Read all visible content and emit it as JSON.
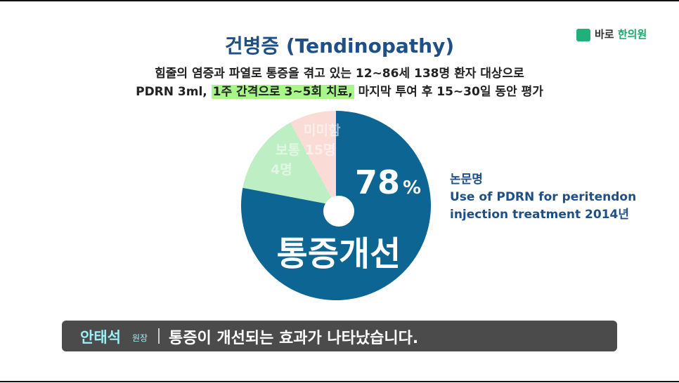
{
  "logo": {
    "brand": "바로",
    "name": "한의원"
  },
  "chart_data": {
    "type": "pie",
    "title": "건병증 (Tendinopathy)",
    "subtitle_line1": "힘줄의 염증과 파열로 통증을 겪고 있는 12~86세 138명 환자 대상으로",
    "subtitle_line2": [
      "PDRN 3ml,",
      "1주 간격으로 3~5회 치료,",
      "마지막 투여 후 15~30일 동안 평가"
    ],
    "categories": [
      "통증개선",
      "보통 15명",
      "미미함"
    ],
    "values": [
      78,
      14,
      8
    ],
    "value_labels": [
      "78"
    ],
    "unit": "%",
    "extra_label": "4명",
    "colors": [
      "#0d6594",
      "#bdeec4",
      "#fbdbd5"
    ]
  },
  "source": {
    "heading": "논문명",
    "lines": [
      "Use of PDRN for peritendon",
      "injection treatment 2014년"
    ]
  },
  "caption": {
    "speaker": "안태석",
    "role": "원장",
    "text": "통증이 개선되는 효과가 나타났습니다."
  }
}
